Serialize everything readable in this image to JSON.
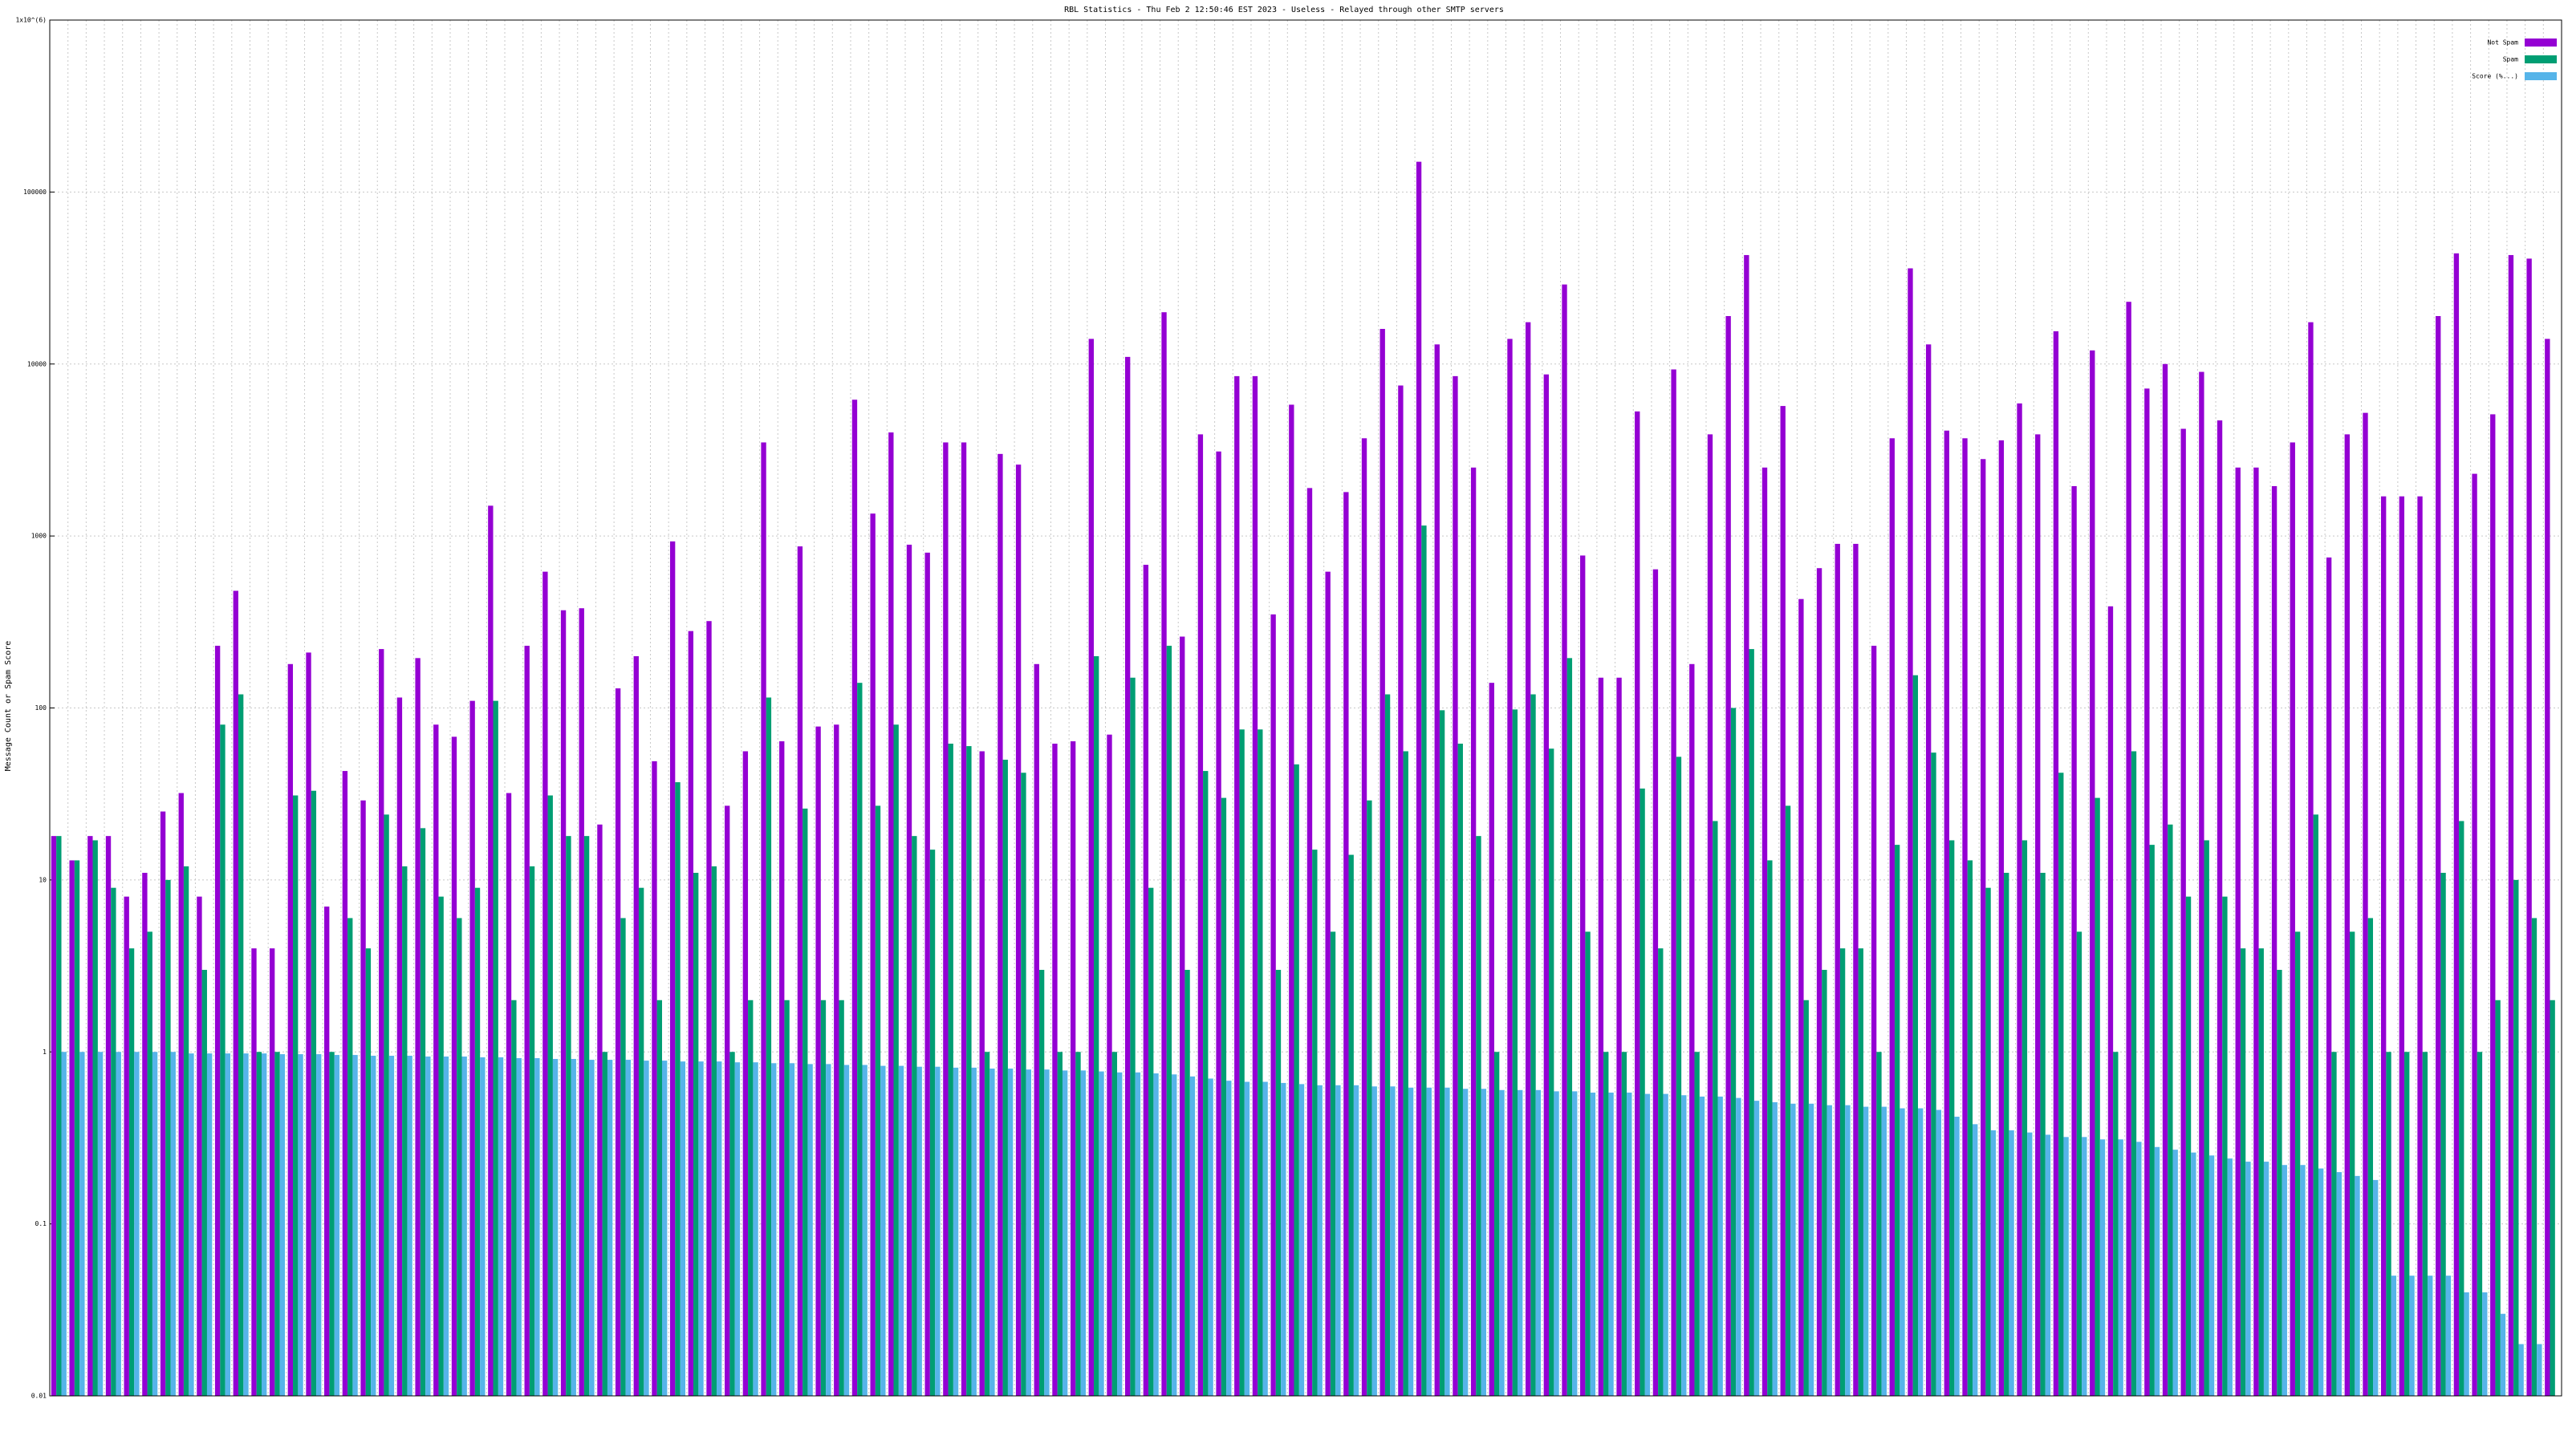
{
  "chart_data": {
    "type": "bar",
    "title": "RBL Statistics - Thu Feb  2 12:50:46 EST 2023 - Useless - Relayed through other SMTP servers",
    "ylabel": "Message Count or Spam Score",
    "log_y": true,
    "grid": true,
    "legend": "top-right",
    "ylim": [
      0.01,
      1000000
    ],
    "yticks": [
      0.01,
      0.1,
      1,
      10,
      100,
      1000,
      10000,
      100000,
      {
        "value": 1000000,
        "label": "1x10^(6)"
      }
    ],
    "categories": [
      null,
      null,
      null,
      null,
      null,
      null,
      null,
      null,
      null,
      null,
      null,
      null,
      null,
      null,
      null,
      null,
      null,
      null,
      null,
      null,
      null,
      null,
      null,
      null,
      null,
      null,
      null,
      null,
      null,
      null,
      null,
      null,
      null,
      null,
      null,
      null,
      null,
      null,
      null,
      null,
      null,
      null,
      null,
      null,
      null,
      null,
      null,
      null,
      null,
      null,
      null,
      null,
      null,
      null,
      null,
      null,
      null,
      null,
      null,
      null,
      null,
      null,
      null,
      null,
      null,
      null,
      null,
      null,
      null,
      null,
      null,
      null,
      null,
      null,
      null,
      null,
      null,
      null,
      null,
      null,
      null,
      null,
      null,
      null,
      null,
      null,
      null,
      null,
      null,
      null,
      null,
      null,
      null,
      null,
      null,
      null,
      null,
      null,
      null,
      null,
      null,
      null,
      null,
      null,
      null,
      null,
      null,
      null,
      null,
      null,
      null,
      null,
      null,
      null,
      null,
      null,
      null,
      null,
      null,
      null,
      null,
      null,
      null,
      null,
      null,
      null,
      null,
      null,
      null,
      null,
      null,
      null,
      null,
      null,
      null,
      null,
      null,
      null
    ],
    "series": [
      {
        "name": "Not Spam",
        "color": "#9400d3",
        "values": [
          18,
          13,
          18,
          18,
          8,
          11,
          25,
          32,
          8,
          230,
          480,
          4,
          4,
          180,
          210,
          7,
          43,
          29,
          220,
          115,
          195,
          80,
          68,
          110,
          1500,
          32,
          230,
          620,
          370,
          380,
          21,
          130,
          200,
          49,
          930,
          280,
          320,
          27,
          56,
          3500,
          64,
          870,
          78,
          80,
          6200,
          1350,
          4000,
          890,
          800,
          3500,
          3500,
          56,
          3000,
          2600,
          180,
          62,
          64,
          14000,
          70,
          11000,
          680,
          20000,
          260,
          3900,
          3100,
          8500,
          8500,
          350,
          5800,
          1900,
          620,
          1800,
          3700,
          16000,
          7500,
          150000,
          13000,
          8500,
          2500,
          140,
          14000,
          17500,
          8700,
          29000,
          770,
          150,
          150,
          5300,
          640,
          9300,
          180,
          3900,
          19000,
          43000,
          2500,
          5700,
          430,
          650,
          900,
          900,
          230,
          3700,
          36000,
          13000,
          4100,
          3700,
          2800,
          3600,
          5900,
          3900,
          15500,
          1950,
          12000,
          390,
          23000,
          7200,
          10000,
          4200,
          9000,
          4700,
          2500,
          2500,
          1950,
          3500,
          17500,
          750,
          3900,
          5200,
          1700,
          1700,
          1700,
          19000,
          44000,
          2300,
          5100,
          43000,
          41000,
          14000
        ]
      },
      {
        "name": "Spam",
        "color": "#009e73",
        "values": [
          18,
          13,
          17,
          9,
          4,
          5,
          10,
          12,
          3,
          80,
          120,
          1,
          1,
          31,
          33,
          1,
          6,
          4,
          24,
          12,
          20,
          8,
          6,
          9,
          110,
          2,
          12,
          31,
          18,
          18,
          1,
          6,
          9,
          2,
          37,
          11,
          12,
          1,
          2,
          115,
          2,
          26,
          2,
          2,
          140,
          27,
          80,
          18,
          15,
          62,
          60,
          1,
          50,
          42,
          3,
          1,
          1,
          200,
          1,
          150,
          9,
          230,
          3,
          43,
          30,
          75,
          75,
          3,
          47,
          15,
          5,
          14,
          29,
          120,
          56,
          1150,
          97,
          62,
          18,
          1,
          98,
          120,
          58,
          195,
          5,
          1,
          1,
          34,
          4,
          52,
          1,
          22,
          100,
          220,
          13,
          27,
          2,
          3,
          4,
          4,
          1,
          16,
          155,
          55,
          17,
          13,
          9,
          11,
          17,
          11,
          42,
          5,
          30,
          1,
          56,
          16,
          21,
          8,
          17,
          8,
          4,
          4,
          3,
          5,
          24,
          1,
          5,
          6,
          1,
          1,
          1,
          11,
          22,
          1,
          2,
          10,
          6,
          2
        ]
      },
      {
        "name": "Score (%...)",
        "color": "#56b4e9",
        "values": [
          1,
          1,
          1,
          1,
          1,
          1,
          1,
          0.98,
          0.98,
          0.98,
          0.98,
          0.98,
          0.97,
          0.97,
          0.97,
          0.96,
          0.96,
          0.95,
          0.95,
          0.95,
          0.94,
          0.94,
          0.94,
          0.93,
          0.93,
          0.92,
          0.92,
          0.91,
          0.91,
          0.9,
          0.9,
          0.9,
          0.89,
          0.89,
          0.88,
          0.88,
          0.88,
          0.87,
          0.87,
          0.86,
          0.86,
          0.85,
          0.85,
          0.84,
          0.84,
          0.83,
          0.83,
          0.82,
          0.82,
          0.81,
          0.81,
          0.8,
          0.8,
          0.79,
          0.79,
          0.78,
          0.78,
          0.77,
          0.76,
          0.76,
          0.75,
          0.74,
          0.72,
          0.7,
          0.68,
          0.67,
          0.67,
          0.66,
          0.65,
          0.64,
          0.64,
          0.64,
          0.63,
          0.63,
          0.62,
          0.62,
          0.62,
          0.61,
          0.61,
          0.6,
          0.6,
          0.6,
          0.59,
          0.59,
          0.58,
          0.58,
          0.58,
          0.57,
          0.57,
          0.56,
          0.55,
          0.55,
          0.54,
          0.52,
          0.51,
          0.5,
          0.5,
          0.49,
          0.49,
          0.48,
          0.48,
          0.47,
          0.47,
          0.46,
          0.42,
          0.38,
          0.35,
          0.35,
          0.34,
          0.33,
          0.32,
          0.32,
          0.31,
          0.31,
          0.3,
          0.28,
          0.27,
          0.26,
          0.25,
          0.24,
          0.23,
          0.23,
          0.22,
          0.22,
          0.21,
          0.2,
          0.19,
          0.18,
          0.05,
          0.05,
          0.05,
          0.05,
          0.04,
          0.04,
          0.03,
          0.02,
          0.02,
          0.01
        ]
      }
    ]
  }
}
